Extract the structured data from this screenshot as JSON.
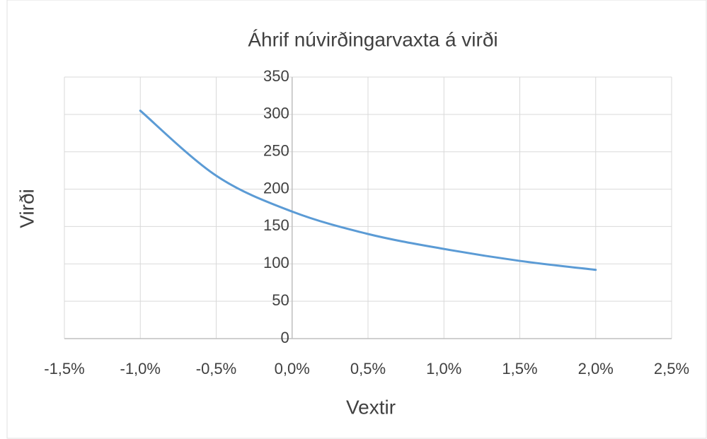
{
  "chart_data": {
    "type": "line",
    "title": "Áhrif núvirðingarvaxta á virði",
    "x_label": "Vextir",
    "y_label": "Virði",
    "series": [
      {
        "name": "Virði",
        "color": "#5b9bd5",
        "x": [
          -1.0,
          -0.5,
          0.0,
          0.5,
          1.0,
          1.5,
          2.0
        ],
        "values": [
          305,
          218,
          170,
          140,
          120,
          104,
          92
        ]
      }
    ],
    "xlim": [
      -1.5,
      2.5
    ],
    "xticks": [
      {
        "value": -1.5,
        "label": "-1,5%"
      },
      {
        "value": -1.0,
        "label": "-1,0%"
      },
      {
        "value": -0.5,
        "label": "-0,5%"
      },
      {
        "value": 0.0,
        "label": "0,0%"
      },
      {
        "value": 0.5,
        "label": "0,5%"
      },
      {
        "value": 1.0,
        "label": "1,0%"
      },
      {
        "value": 1.5,
        "label": "1,5%"
      },
      {
        "value": 2.0,
        "label": "2,0%"
      },
      {
        "value": 2.5,
        "label": "2,5%"
      }
    ],
    "ylim": [
      0,
      350
    ],
    "yticks": [
      0,
      50,
      100,
      150,
      200,
      250,
      300,
      350
    ],
    "grid": true
  }
}
